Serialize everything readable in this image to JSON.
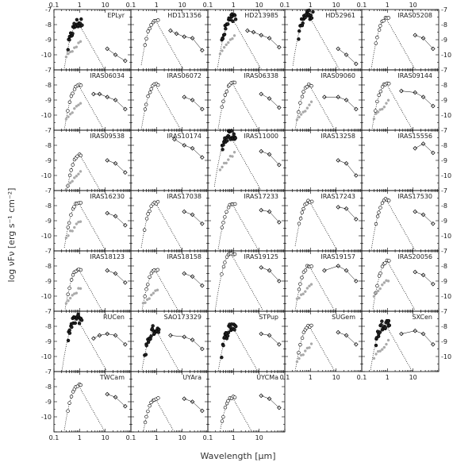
{
  "chart_data": {
    "type": "scatter",
    "xlabel": "Wavelength [μm]",
    "ylabel": "log νFν [erg s⁻¹ cm⁻²]",
    "x_scale": "log",
    "xlim": [
      0.1,
      100
    ],
    "ylim": [
      -11,
      -7
    ],
    "x_ticks": [
      "0.1",
      "1",
      "10"
    ],
    "y_ticks": [
      "-7",
      "-8",
      "-9",
      "-10"
    ],
    "panels": [
      {
        "name": "EPLyr",
        "peak_um": 0.9,
        "peak": -7.9,
        "ir": [
          [
            12,
            -9.6
          ],
          [
            25,
            -10.0
          ],
          [
            60,
            -10.4
          ]
        ],
        "optical": "dense_dark",
        "faint": true
      },
      {
        "name": "HD131356",
        "peak_um": 0.9,
        "peak": -7.7,
        "ir": [
          [
            3.5,
            -8.4
          ],
          [
            6,
            -8.6
          ],
          [
            12,
            -8.8
          ],
          [
            25,
            -8.9
          ],
          [
            60,
            -9.7
          ]
        ],
        "optical": "normal",
        "faint": false
      },
      {
        "name": "HD213985",
        "peak_um": 0.9,
        "peak": -7.6,
        "ir": [
          [
            3.5,
            -8.4
          ],
          [
            6,
            -8.5
          ],
          [
            12,
            -8.7
          ],
          [
            25,
            -8.9
          ],
          [
            60,
            -9.5
          ]
        ],
        "optical": "dense_dark",
        "faint": true
      },
      {
        "name": "HD52961",
        "peak_um": 0.8,
        "peak": -7.3,
        "ir": [
          [
            12,
            -9.6
          ],
          [
            25,
            -10.0
          ],
          [
            60,
            -10.6
          ]
        ],
        "optical": "dense_dark",
        "faint": false
      },
      {
        "name": "IRAS05208",
        "peak_um": 0.9,
        "peak": -7.6,
        "ir": [
          [
            12,
            -8.7
          ],
          [
            25,
            -8.9
          ],
          [
            60,
            -9.6
          ]
        ],
        "optical": "normal",
        "faint": false
      },
      {
        "name": "IRAS06034",
        "peak_um": 0.9,
        "peak": -8.0,
        "ir": [
          [
            3.5,
            -8.6
          ],
          [
            6,
            -8.6
          ],
          [
            12,
            -8.8
          ],
          [
            25,
            -9.0
          ],
          [
            60,
            -9.6
          ]
        ],
        "optical": "normal",
        "faint": true
      },
      {
        "name": "IRAS06072",
        "peak_um": 0.9,
        "peak": -8.0,
        "ir": [
          [
            12,
            -8.8
          ],
          [
            25,
            -9.0
          ],
          [
            60,
            -9.6
          ]
        ],
        "optical": "normal",
        "faint": false
      },
      {
        "name": "IRAS06338",
        "peak_um": 0.9,
        "peak": -7.9,
        "ir": [
          [
            12,
            -8.6
          ],
          [
            25,
            -8.9
          ],
          [
            60,
            -9.5
          ]
        ],
        "optical": "normal",
        "faint": false
      },
      {
        "name": "IRAS09060",
        "peak_um": 0.9,
        "peak": -8.0,
        "ir": [
          [
            3.5,
            -8.8
          ],
          [
            12,
            -8.8
          ],
          [
            25,
            -9.0
          ],
          [
            60,
            -9.6
          ]
        ],
        "optical": "normal",
        "faint": true
      },
      {
        "name": "IRAS09144",
        "peak_um": 0.9,
        "peak": -7.9,
        "ir": [
          [
            3.5,
            -8.4
          ],
          [
            12,
            -8.5
          ],
          [
            25,
            -8.8
          ],
          [
            60,
            -9.4
          ]
        ],
        "optical": "normal",
        "faint": true
      },
      {
        "name": "IRAS09538",
        "peak_um": 1.0,
        "peak": -8.6,
        "ir": [
          [
            12,
            -9.0
          ],
          [
            25,
            -9.2
          ],
          [
            60,
            -9.8
          ]
        ],
        "optical": "normal",
        "faint": true
      },
      {
        "name": "IRAS10174",
        "peak_um": 3.0,
        "peak": -7.4,
        "ir": [
          [
            5,
            -7.6
          ],
          [
            12,
            -8.0
          ],
          [
            25,
            -8.2
          ],
          [
            60,
            -8.8
          ]
        ],
        "optical": "none",
        "faint": false
      },
      {
        "name": "IRAS11000",
        "peak_um": 0.7,
        "peak": -7.3,
        "ir": [
          [
            12,
            -8.4
          ],
          [
            25,
            -8.6
          ],
          [
            60,
            -9.3
          ]
        ],
        "optical": "dense_dark",
        "faint": true
      },
      {
        "name": "IRAS13258",
        "peak_um": 4.0,
        "peak": -9.2,
        "ir": [
          [
            12,
            -9.0
          ],
          [
            25,
            -9.2
          ],
          [
            60,
            -10.0
          ]
        ],
        "optical": "none",
        "faint": false
      },
      {
        "name": "IRAS15556",
        "peak_um": 5.0,
        "peak": -8.6,
        "ir": [
          [
            12,
            -8.2
          ],
          [
            25,
            -7.9
          ],
          [
            60,
            -8.5
          ]
        ],
        "optical": "none",
        "faint": false
      },
      {
        "name": "IRAS16230",
        "peak_um": 0.9,
        "peak": -7.8,
        "ir": [
          [
            12,
            -8.5
          ],
          [
            25,
            -8.7
          ],
          [
            60,
            -9.3
          ]
        ],
        "optical": "normal",
        "faint": true
      },
      {
        "name": "IRAS17038",
        "peak_um": 0.9,
        "peak": -7.8,
        "ir": [
          [
            12,
            -8.4
          ],
          [
            25,
            -8.6
          ],
          [
            60,
            -9.2
          ]
        ],
        "optical": "normal",
        "faint": false
      },
      {
        "name": "IRAS17233",
        "peak_um": 0.9,
        "peak": -7.9,
        "ir": [
          [
            12,
            -8.3
          ],
          [
            25,
            -8.4
          ],
          [
            60,
            -9.1
          ]
        ],
        "optical": "normal",
        "faint": false
      },
      {
        "name": "IRAS17243",
        "peak_um": 0.9,
        "peak": -7.7,
        "ir": [
          [
            12,
            -8.1
          ],
          [
            25,
            -8.2
          ],
          [
            60,
            -8.9
          ]
        ],
        "optical": "normal",
        "faint": false
      },
      {
        "name": "IRAS17530",
        "peak_um": 0.9,
        "peak": -7.6,
        "ir": [
          [
            12,
            -8.4
          ],
          [
            25,
            -8.6
          ],
          [
            60,
            -9.2
          ]
        ],
        "optical": "normal",
        "faint": false
      },
      {
        "name": "IRAS18123",
        "peak_um": 0.9,
        "peak": -8.2,
        "ir": [
          [
            12,
            -8.3
          ],
          [
            25,
            -8.5
          ],
          [
            60,
            -9.1
          ]
        ],
        "optical": "normal",
        "faint": true
      },
      {
        "name": "IRAS18158",
        "peak_um": 0.9,
        "peak": -8.3,
        "ir": [
          [
            12,
            -8.5
          ],
          [
            25,
            -8.7
          ],
          [
            60,
            -9.3
          ]
        ],
        "optical": "normal",
        "faint": true
      },
      {
        "name": "IRAS19125",
        "peak_um": 0.8,
        "peak": -7.2,
        "ir": [
          [
            12,
            -8.1
          ],
          [
            25,
            -8.3
          ],
          [
            60,
            -9.0
          ]
        ],
        "optical": "normal",
        "faint": false
      },
      {
        "name": "IRAS19157",
        "peak_um": 0.9,
        "peak": -8.0,
        "ir": [
          [
            3.5,
            -8.3
          ],
          [
            12,
            -8.0
          ],
          [
            25,
            -8.3
          ],
          [
            60,
            -9.0
          ]
        ],
        "optical": "normal",
        "faint": true
      },
      {
        "name": "IRAS20056",
        "peak_um": 1.0,
        "peak": -7.7,
        "ir": [
          [
            12,
            -8.4
          ],
          [
            25,
            -8.6
          ],
          [
            60,
            -9.2
          ]
        ],
        "optical": "normal",
        "faint": true
      },
      {
        "name": "RUCen",
        "peak_um": 0.8,
        "peak": -7.5,
        "ir": [
          [
            3.5,
            -8.8
          ],
          [
            6,
            -8.6
          ],
          [
            12,
            -8.5
          ],
          [
            25,
            -8.6
          ],
          [
            60,
            -9.2
          ]
        ],
        "optical": "dense_dark",
        "faint": false
      },
      {
        "name": "SAO173329",
        "peak_um": 0.9,
        "peak": -8.2,
        "ir": [
          [
            3.5,
            -8.6
          ],
          [
            12,
            -8.7
          ],
          [
            25,
            -8.9
          ],
          [
            60,
            -9.5
          ]
        ],
        "optical": "dense_dark",
        "faint": false
      },
      {
        "name": "STPup",
        "peak_um": 0.9,
        "peak": -8.0,
        "ir": [
          [
            12,
            -8.5
          ],
          [
            25,
            -8.6
          ],
          [
            60,
            -9.2
          ]
        ],
        "optical": "dense_dark",
        "faint": false
      },
      {
        "name": "SUGem",
        "peak_um": 0.9,
        "peak": -8.0,
        "ir": [
          [
            12,
            -8.4
          ],
          [
            25,
            -8.6
          ],
          [
            60,
            -9.2
          ]
        ],
        "optical": "normal",
        "faint": true
      },
      {
        "name": "SXCen",
        "peak_um": 0.8,
        "peak": -7.8,
        "ir": [
          [
            3.5,
            -8.5
          ],
          [
            12,
            -8.3
          ],
          [
            25,
            -8.5
          ],
          [
            60,
            -9.2
          ]
        ],
        "optical": "dense_dark",
        "faint": true
      },
      {
        "name": "TWCam",
        "peak_um": 0.9,
        "peak": -7.9,
        "ir": [
          [
            12,
            -8.5
          ],
          [
            25,
            -8.7
          ],
          [
            60,
            -9.3
          ]
        ],
        "optical": "normal",
        "faint": false
      },
      {
        "name": "UYAra",
        "peak_um": 0.9,
        "peak": -8.8,
        "ir": [
          [
            12,
            -8.8
          ],
          [
            25,
            -9.0
          ],
          [
            60,
            -9.6
          ]
        ],
        "optical": "normal",
        "faint": false
      },
      {
        "name": "UYCMa",
        "peak_um": 0.9,
        "peak": -8.7,
        "ir": [
          [
            12,
            -8.6
          ],
          [
            25,
            -8.8
          ],
          [
            60,
            -9.4
          ]
        ],
        "optical": "normal",
        "faint": false
      }
    ]
  }
}
